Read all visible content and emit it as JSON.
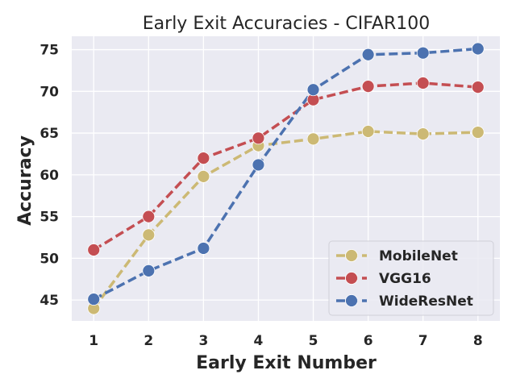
{
  "chart_data": {
    "type": "line",
    "title": "Early Exit Accuracies - CIFAR100",
    "xlabel": "Early Exit Number",
    "ylabel": "Accuracy",
    "x": [
      1,
      2,
      3,
      4,
      5,
      6,
      7,
      8
    ],
    "xticks": [
      "1",
      "2",
      "3",
      "4",
      "5",
      "6",
      "7",
      "8"
    ],
    "yticks": [
      "45",
      "50",
      "55",
      "60",
      "65",
      "70",
      "75"
    ],
    "ylim": [
      42.5,
      76.6
    ],
    "xlim": [
      0.6,
      8.4
    ],
    "grid": true,
    "legend_position": "lower-right",
    "style": {
      "background": "#eaeaf2",
      "grid_color": "#ffffff",
      "line_style": "dashed",
      "marker": "circle"
    },
    "series": [
      {
        "name": "MobileNet",
        "color": "#ccb974",
        "values": [
          44.0,
          52.8,
          59.8,
          63.5,
          64.3,
          65.2,
          64.9,
          65.1
        ]
      },
      {
        "name": "VGG16",
        "color": "#c44e52",
        "values": [
          51.0,
          55.0,
          62.0,
          64.4,
          69.0,
          70.6,
          71.0,
          70.5
        ]
      },
      {
        "name": "WideResNet",
        "color": "#4c72b0",
        "values": [
          45.1,
          48.5,
          51.2,
          61.2,
          70.2,
          74.4,
          74.6,
          75.1
        ]
      }
    ]
  }
}
